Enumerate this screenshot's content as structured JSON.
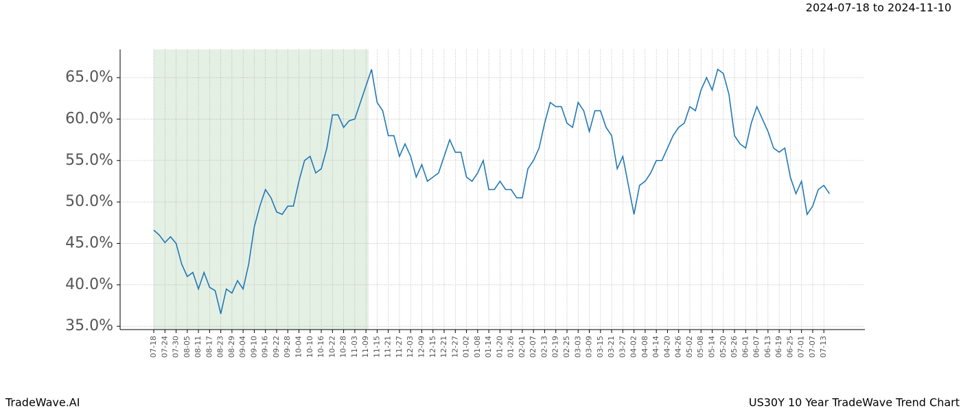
{
  "chart_data": {
    "type": "line",
    "date_range": "2024-07-18 to 2024-11-10",
    "brand": "TradeWave.AI",
    "title": "US30Y 10 Year TradeWave Trend Chart",
    "categories": [
      "07-18",
      null,
      "07-24",
      null,
      "07-30",
      null,
      "08-05",
      null,
      "08-11",
      null,
      "08-17",
      null,
      "08-23",
      null,
      "08-29",
      null,
      "09-04",
      null,
      "09-10",
      null,
      "09-16",
      null,
      "09-22",
      null,
      "09-28",
      null,
      "10-04",
      null,
      "10-10",
      null,
      "10-16",
      null,
      "10-22",
      null,
      "10-28",
      null,
      "11-03",
      null,
      "11-09",
      null,
      "11-15",
      null,
      "11-21",
      null,
      "11-27",
      null,
      "12-03",
      null,
      "12-09",
      null,
      "12-15",
      null,
      "12-21",
      null,
      "12-27",
      null,
      "01-02",
      null,
      "01-08",
      null,
      "01-14",
      null,
      "01-20",
      null,
      "01-26",
      null,
      "02-01",
      null,
      "02-07",
      null,
      "02-13",
      null,
      "02-19",
      null,
      "02-25",
      null,
      "03-03",
      null,
      "03-09",
      null,
      "03-15",
      null,
      "03-21",
      null,
      "03-27",
      null,
      "04-02",
      null,
      "04-08",
      null,
      "04-14",
      null,
      "04-20",
      null,
      "04-26",
      null,
      "05-02",
      null,
      "05-08",
      null,
      "05-14",
      null,
      "05-20",
      null,
      "05-26",
      null,
      "06-01",
      null,
      "06-07",
      null,
      "06-13",
      null,
      "06-19",
      null,
      "06-25",
      null,
      "07-01",
      null,
      "07-07",
      null,
      "07-13",
      null
    ],
    "series": [
      {
        "color": "#1f77b4",
        "values": [
          46.6,
          46.0,
          45.1,
          45.8,
          45.0,
          42.5,
          41.0,
          41.5,
          39.5,
          41.5,
          39.7,
          39.3,
          36.5,
          39.5,
          39.0,
          40.5,
          39.5,
          42.5,
          47.0,
          49.5,
          51.5,
          50.5,
          48.8,
          48.5,
          49.5,
          49.5,
          52.5,
          55.0,
          55.5,
          53.5,
          54.0,
          56.5,
          60.5,
          60.5,
          59.0,
          59.8,
          60.0,
          62.0,
          64.0,
          66.0,
          62.0,
          61.0,
          58.0,
          58.0,
          55.5,
          57.0,
          55.5,
          53.0,
          54.5,
          52.5,
          53.0,
          53.5,
          55.5,
          57.5,
          56.0,
          56.0,
          53.0,
          52.5,
          53.5,
          55.0,
          51.5,
          51.5,
          52.5,
          51.5,
          51.5,
          50.5,
          50.5,
          54.0,
          55.0,
          56.5,
          59.5,
          62.0,
          61.5,
          61.5,
          59.5,
          59.0,
          62.0,
          61.0,
          58.5,
          61.0,
          61.0,
          59.0,
          58.0,
          54.0,
          55.5,
          52.0,
          48.5,
          52.0,
          52.5,
          53.5,
          55.0,
          55.0,
          56.5,
          58.0,
          59.0,
          59.5,
          61.5,
          61.0,
          63.5,
          65.0,
          63.5,
          66.0,
          65.5,
          63.0,
          58.0,
          57.0,
          56.5,
          59.5,
          61.5,
          60.0,
          58.5,
          56.5,
          56.0,
          56.5,
          53.0,
          51.0,
          52.5,
          48.5,
          49.5,
          51.5,
          52.0,
          51.0
        ]
      }
    ],
    "highlight": [
      0,
      38
    ],
    "highlight_color": "#e5f0e5",
    "ylim": [
      34.6,
      68.4
    ],
    "yticks": [
      {
        "value": 35,
        "label": "35.0%"
      },
      {
        "value": 40,
        "label": "40.0%"
      },
      {
        "value": 45,
        "label": "45.0%"
      },
      {
        "value": 50,
        "label": "50.0%"
      },
      {
        "value": 55,
        "label": "55.0%"
      },
      {
        "value": 60,
        "label": "60.0%"
      },
      {
        "value": 65,
        "label": "65.0%"
      }
    ],
    "grid": true
  }
}
